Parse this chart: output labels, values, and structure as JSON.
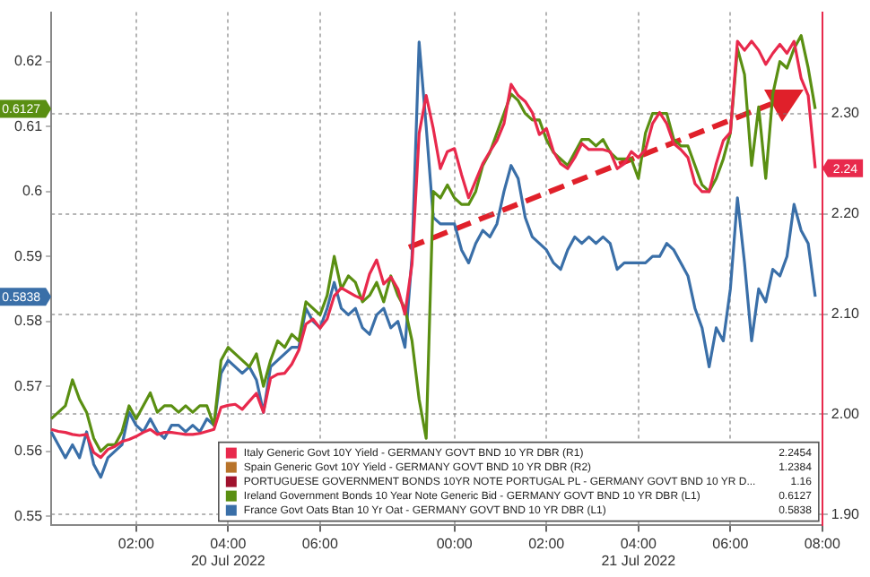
{
  "chart_data": {
    "type": "line",
    "categories": [
      null,
      null,
      null,
      null,
      null,
      null,
      null,
      null,
      null,
      null,
      null,
      null,
      "02:00",
      null,
      null,
      null,
      null,
      null,
      null,
      null,
      null,
      null,
      null,
      null,
      null,
      "04:00\n20 Jul 2022",
      null,
      null,
      null,
      null,
      null,
      null,
      null,
      null,
      null,
      null,
      null,
      null,
      "06:00",
      null,
      null,
      null,
      null,
      null,
      null,
      null,
      null,
      null,
      null,
      null,
      null,
      null,
      null,
      null,
      null,
      null,
      null,
      "00:00",
      null,
      null,
      null,
      null,
      null,
      null,
      null,
      null,
      null,
      null,
      null,
      null,
      "02:00",
      null,
      null,
      null,
      null,
      null,
      null,
      null,
      null,
      null,
      null,
      null,
      null,
      "04:00\n21 Jul 2022",
      null,
      null,
      null,
      null,
      null,
      null,
      null,
      null,
      null,
      null,
      null,
      null,
      "06:00",
      null,
      null,
      null,
      null,
      null,
      null,
      null,
      null,
      null,
      null,
      null,
      null,
      "08:00"
    ],
    "series": [
      {
        "name": "Italy Generic Govt 10Y Yield - GERMANY GOVT BND 10 YR DBR (R1)",
        "color": "#e8294c",
        "axis": "y2",
        "values": [
          1.985,
          1.983,
          1.982,
          1.98,
          1.979,
          1.98,
          1.962,
          1.957,
          1.965,
          1.968,
          1.973,
          1.975,
          1.978,
          1.982,
          1.985,
          1.98,
          1.982,
          1.982,
          1.981,
          1.98,
          1.98,
          1.981,
          1.983,
          1.985,
          2.007,
          2.009,
          2.01,
          2.005,
          2.013,
          2.021,
          2.002,
          2.036,
          2.04,
          2.041,
          2.05,
          2.064,
          2.09,
          2.095,
          2.086,
          2.095,
          2.118,
          2.126,
          2.122,
          2.118,
          2.115,
          2.14,
          2.154,
          2.13,
          2.137,
          2.125,
          2.1,
          2.15,
          2.28,
          2.318,
          2.285,
          2.245,
          2.262,
          2.265,
          2.239,
          2.216,
          2.233,
          2.25,
          2.262,
          2.273,
          2.29,
          2.329,
          2.318,
          2.312,
          2.301,
          2.279,
          2.285,
          2.262,
          2.25,
          2.245,
          2.256,
          2.27,
          2.264,
          2.264,
          2.264,
          2.262,
          2.245,
          2.25,
          2.262,
          2.256,
          2.264,
          2.29,
          2.301,
          2.29,
          2.27,
          2.264,
          2.256,
          2.23,
          2.222,
          2.222,
          2.25,
          2.273,
          2.281,
          2.372,
          2.363,
          2.372,
          2.363,
          2.349,
          2.36,
          2.369,
          2.36,
          2.372,
          2.335,
          2.318,
          2.2454,
          null
        ]
      },
      {
        "name": "Spain Generic Govt 10Y Yield - GERMANY GOVT BND 10 YR DBR (R2)",
        "color": "#b8732a",
        "axis": "y2",
        "values": [
          null,
          null,
          null,
          null,
          null,
          null,
          null,
          null,
          null,
          null,
          null,
          null,
          null,
          null,
          null,
          null,
          null,
          null,
          null,
          null,
          null,
          null,
          null,
          null,
          null,
          null,
          null,
          null,
          null,
          null,
          null,
          null,
          null,
          null,
          null,
          null,
          null,
          null,
          null,
          null,
          null,
          null,
          null,
          null,
          null,
          null,
          null,
          null,
          null,
          null,
          null,
          null,
          null,
          null,
          null,
          null,
          null,
          null,
          null,
          null,
          null,
          null,
          null,
          null,
          null,
          null,
          null,
          null,
          null,
          null,
          null,
          null,
          null,
          null,
          null,
          null,
          null,
          null,
          null,
          null,
          null,
          null,
          null,
          null,
          null,
          null,
          null,
          null,
          null,
          null,
          null,
          null,
          null,
          null,
          null,
          null,
          null,
          null,
          null,
          null,
          null,
          null,
          null,
          null,
          null,
          null,
          null,
          null,
          null,
          null
        ]
      },
      {
        "name": "PORTUGUESE GOVERNMENT BONDS 10YR NOTE PORTUGAL PL - GERMANY GOVT BND 10 YR D...",
        "color": "#a0122e",
        "values": [
          null,
          null,
          null,
          null,
          null,
          null,
          null,
          null,
          null,
          null,
          null,
          null,
          null,
          null,
          null,
          null,
          null,
          null,
          null,
          null,
          null,
          null,
          null,
          null,
          null,
          null,
          null,
          null,
          null,
          null,
          null,
          null,
          null,
          null,
          null,
          null,
          null,
          null,
          null,
          null,
          null,
          null,
          null,
          null,
          null,
          null,
          null,
          null,
          null,
          null,
          null,
          null,
          null,
          null,
          null,
          null,
          null,
          null,
          null,
          null,
          null,
          null,
          null,
          null,
          null,
          null,
          null,
          null,
          null,
          null,
          null,
          null,
          null,
          null,
          null,
          null,
          null,
          null,
          null,
          null,
          null,
          null,
          null,
          null,
          null,
          null,
          null,
          null,
          null,
          null,
          null,
          null,
          null,
          null,
          null,
          null,
          null,
          null,
          null,
          null,
          null,
          null,
          null,
          null,
          null,
          null,
          null,
          null,
          null,
          null
        ]
      },
      {
        "name": "Ireland Government Bonds 10 Year Note Generic Bid - GERMANY GOVT BND 10 YR DBR (L1)",
        "color": "#5a8f12",
        "values": [
          0.565,
          0.566,
          0.567,
          0.571,
          0.568,
          0.566,
          0.562,
          0.56,
          0.561,
          0.561,
          0.563,
          0.567,
          0.565,
          0.567,
          0.569,
          0.566,
          0.567,
          0.567,
          0.566,
          0.567,
          0.566,
          0.567,
          0.567,
          0.564,
          0.574,
          0.576,
          0.575,
          0.574,
          0.573,
          0.575,
          0.57,
          0.574,
          0.577,
          0.576,
          0.578,
          0.577,
          0.583,
          0.582,
          0.581,
          0.584,
          0.59,
          0.585,
          0.587,
          0.586,
          0.583,
          0.584,
          0.586,
          0.583,
          0.587,
          0.584,
          0.582,
          0.577,
          0.568,
          0.562,
          0.6,
          0.599,
          0.601,
          0.599,
          0.598,
          0.598,
          0.6,
          0.604,
          0.606,
          0.609,
          0.612,
          0.615,
          0.614,
          0.612,
          0.611,
          0.611,
          0.608,
          0.606,
          0.605,
          0.604,
          0.606,
          0.608,
          0.608,
          0.607,
          0.608,
          0.606,
          0.605,
          0.605,
          0.605,
          0.602,
          0.609,
          0.612,
          0.612,
          0.612,
          0.608,
          0.607,
          0.607,
          0.604,
          0.601,
          0.6,
          0.602,
          0.605,
          0.609,
          0.622,
          0.618,
          0.604,
          0.613,
          0.602,
          0.615,
          0.62,
          0.619,
          0.622,
          0.624,
          0.619,
          0.6127,
          null
        ]
      },
      {
        "name": "France Govt Oats Btan 10 Yr Oat - GERMANY GOVT BND 10 YR DBR (L1)",
        "color": "#3a6fa8",
        "values": [
          0.563,
          0.561,
          0.559,
          0.561,
          0.559,
          0.563,
          0.558,
          0.556,
          0.559,
          0.56,
          0.561,
          0.566,
          0.564,
          0.563,
          0.565,
          0.563,
          0.562,
          0.564,
          0.564,
          0.563,
          0.564,
          0.563,
          0.565,
          0.564,
          0.572,
          0.574,
          0.573,
          0.572,
          0.573,
          0.571,
          0.566,
          0.573,
          0.574,
          0.575,
          0.576,
          0.576,
          0.582,
          0.58,
          0.579,
          0.582,
          0.586,
          0.582,
          0.581,
          0.582,
          0.579,
          0.578,
          0.581,
          0.582,
          0.579,
          0.58,
          0.576,
          0.59,
          0.623,
          0.61,
          0.596,
          0.595,
          0.595,
          0.595,
          0.591,
          0.589,
          0.592,
          0.594,
          0.593,
          0.595,
          0.6,
          0.604,
          0.602,
          0.596,
          0.593,
          0.592,
          0.591,
          0.589,
          0.588,
          0.591,
          0.593,
          0.592,
          0.593,
          0.592,
          0.593,
          0.592,
          0.588,
          0.589,
          0.589,
          0.589,
          0.589,
          0.59,
          0.59,
          0.592,
          0.591,
          0.589,
          0.587,
          0.582,
          0.579,
          0.573,
          0.579,
          0.577,
          0.585,
          0.599,
          0.589,
          0.577,
          0.585,
          0.583,
          0.588,
          0.587,
          0.59,
          0.598,
          0.594,
          0.592,
          0.5838,
          null
        ]
      }
    ],
    "ylim": [
      0.5487,
      0.6276
    ],
    "yticks": [
      0.55,
      0.56,
      0.57,
      0.58,
      0.59,
      0.6,
      0.61,
      0.62
    ],
    "y2lim": [
      1.89,
      2.401
    ],
    "y2ticks": [
      {
        "value": 1.9,
        "label": "1.90"
      },
      {
        "value": 2,
        "label": "2.00"
      },
      {
        "value": 2.1,
        "label": "2.10"
      },
      {
        "value": 2.2,
        "label": "2.20"
      },
      {
        "value": 2.3,
        "label": "2.30"
      }
    ],
    "annotations": [
      "2.2454",
      "1.2384",
      "1.16",
      "0.6127",
      "0.5838",
      {
        "text": "0.6127",
        "y": 0.6127
      },
      {
        "text": "0.5838",
        "y": 0.5838
      },
      "2.24"
    ],
    "grid": true,
    "legend": "bottom right",
    "marker": "none"
  }
}
